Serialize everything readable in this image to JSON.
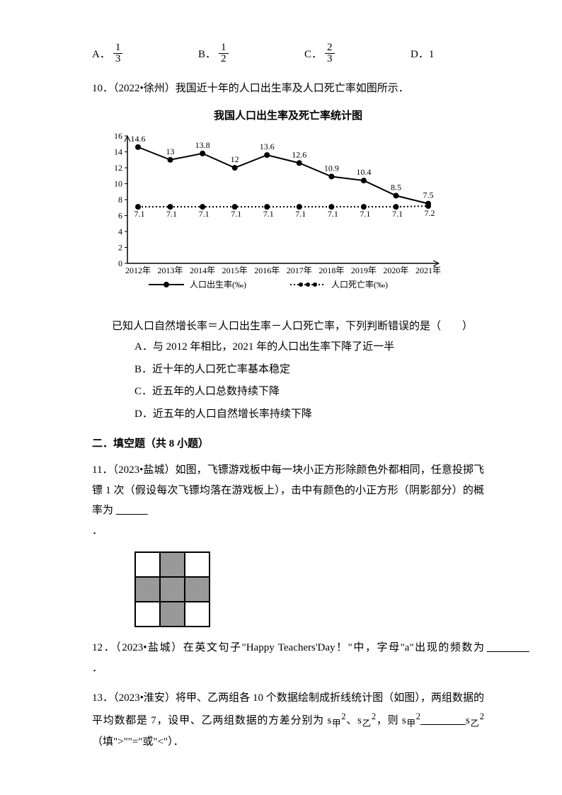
{
  "options9": {
    "A": {
      "label": "A．",
      "num": "1",
      "den": "3"
    },
    "B": {
      "label": "B．",
      "num": "1",
      "den": "2"
    },
    "C": {
      "label": "C．",
      "num": "2",
      "den": "3"
    },
    "D": {
      "label": "D．1"
    }
  },
  "q10": {
    "stem": "10．（2022•徐州）我国近十年的人口出生率及人口死亡率如图所示．",
    "chart_title": "我国人口出生率及死亡率统计图",
    "chart": {
      "years": [
        "2012年",
        "2013年",
        "2014年",
        "2015年",
        "2016年",
        "2017年",
        "2018年",
        "2019年",
        "2020年",
        "2021年"
      ],
      "birth": [
        14.6,
        13.0,
        13.8,
        12.0,
        13.6,
        12.6,
        10.9,
        10.4,
        8.5,
        7.5
      ],
      "death": [
        7.1,
        7.1,
        7.1,
        7.1,
        7.1,
        7.1,
        7.1,
        7.1,
        7.1,
        7.2
      ],
      "ymax": 16,
      "ytick": 2,
      "line_color": "#000000",
      "legend_birth": "人口出生率(‰)",
      "legend_death": "人口死亡率(‰)"
    },
    "after_chart": "已知人口自然增长率＝人口出生率－人口死亡率，下列判断错误的是（　　）",
    "A": "A．与 2012 年相比，2021 年的人口出生率下降了近一半",
    "B": "B．近十年的人口死亡率基本稳定",
    "C": "C．近五年的人口总数持续下降",
    "D": "D．近五年的人口自然增长率持续下降"
  },
  "section2": "二．填空题（共 8 小题）",
  "q11": {
    "stem": "11．（2023•盐城）如图，飞镖游戏板中每一块小正方形除颜色外都相同，任意投掷飞镖 1 次（假设每次飞镖均落在游戏板上），击中有颜色的小正方形（阴影部分）的概率为 ",
    "blank": "　　　"
  },
  "q12": {
    "stem": "12．（2023•盐城）在英文句子\"Happy Teachers'Day！\"中，字母\"a\"出现的频数为 ",
    "blank": "　　　　"
  },
  "q13": {
    "stem": "13．（2023•淮安）将甲、乙两组各 10 个数据绘制成折线统计图（如图），两组数据的平均数都是 7，设甲、乙两组数据的方差分别为 s",
    "sub1": "甲",
    "sup": "2",
    "mid": "、s",
    "sub2": "乙",
    "tail": "，则 s",
    "blank": "　　　　",
    "tail2": "（填\">\"\"=\"或\"<\"）．"
  }
}
